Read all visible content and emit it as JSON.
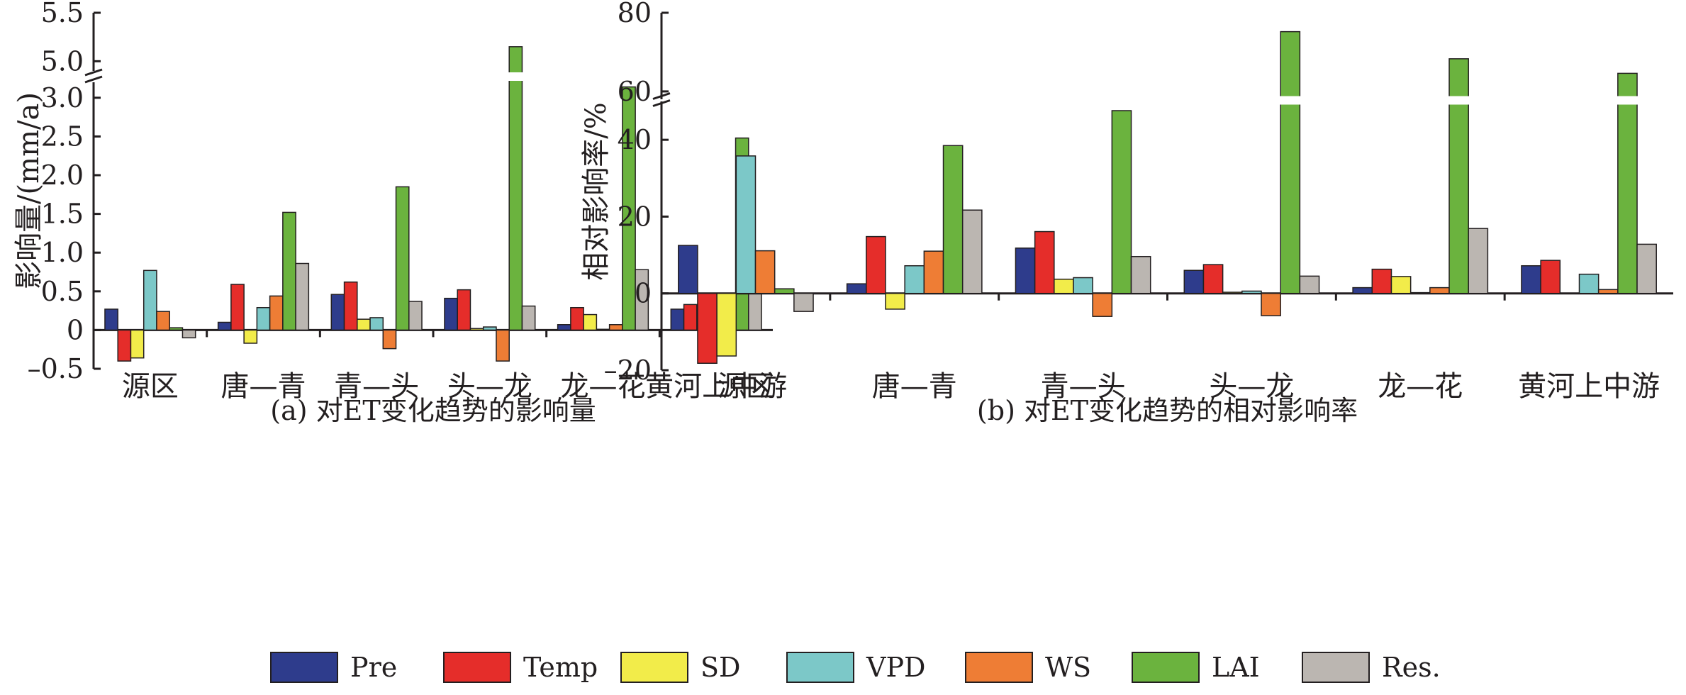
{
  "legend": [
    {
      "name": "Pre",
      "color": "#2e3c8c"
    },
    {
      "name": "Temp",
      "color": "#e52d2a"
    },
    {
      "name": "SD",
      "color": "#f2ec4a"
    },
    {
      "name": "VPD",
      "color": "#7cc8c8"
    },
    {
      "name": "WS",
      "color": "#ee7d35"
    },
    {
      "name": "LAI",
      "color": "#6bb33e"
    },
    {
      "name": "Res.",
      "color": "#bbb6b1"
    }
  ],
  "chart_data": [
    {
      "type": "bar",
      "caption": "(a) 对ET变化趋势的影响量",
      "ylabel": "影响量/(mm/a)",
      "xlabel": "",
      "categories": [
        "源区",
        "唐—青",
        "青—头",
        "头—龙",
        "龙—花",
        "黄河上中游"
      ],
      "ylim": [
        -0.5,
        5.5
      ],
      "axis_break": {
        "from": 3.2,
        "to": 4.9
      },
      "yticks": [
        -0.5,
        0,
        0.5,
        1.0,
        1.5,
        2.0,
        2.5,
        3.0,
        5.0,
        5.5
      ],
      "ytick_labels": [
        "–0.5",
        "0",
        "0.5",
        "1.0",
        "1.5",
        "2.0",
        "2.5",
        "3.0",
        "5.0",
        "5.5"
      ],
      "series": [
        {
          "name": "Pre",
          "values": [
            0.27,
            0.1,
            0.46,
            0.41,
            0.07,
            0.27
          ]
        },
        {
          "name": "Temp",
          "values": [
            -0.4,
            0.59,
            0.62,
            0.52,
            0.29,
            0.33
          ]
        },
        {
          "name": "SD",
          "values": [
            -0.36,
            -0.17,
            0.14,
            0.02,
            0.2,
            0.0
          ]
        },
        {
          "name": "VPD",
          "values": [
            0.77,
            0.29,
            0.16,
            0.04,
            0.01,
            0.19
          ]
        },
        {
          "name": "WS",
          "values": [
            0.24,
            0.44,
            -0.24,
            -0.4,
            0.07,
            0.04
          ]
        },
        {
          "name": "LAI",
          "values": [
            0.03,
            1.52,
            1.85,
            5.15,
            3.14,
            2.48
          ]
        },
        {
          "name": "Res.",
          "values": [
            -0.1,
            0.86,
            0.37,
            0.31,
            0.78,
            0.5
          ]
        }
      ]
    },
    {
      "type": "bar",
      "caption": "(b) 对ET变化趋势的相对影响率",
      "ylabel": "相对影响率/%",
      "xlabel": "",
      "categories": [
        "源区",
        "唐—青",
        "青—头",
        "头—龙",
        "龙—花",
        "黄河上中游"
      ],
      "ylim": [
        -20,
        80
      ],
      "axis_break": {
        "from": 50,
        "to": 58
      },
      "yticks": [
        -20,
        0,
        20,
        40,
        60,
        80
      ],
      "ytick_labels": [
        "–20",
        "0",
        "20",
        "40",
        "60",
        "80"
      ],
      "series": [
        {
          "name": "Pre",
          "values": [
            12.5,
            2.5,
            11.8,
            6.0,
            1.5,
            7.2
          ]
        },
        {
          "name": "Temp",
          "values": [
            -18.2,
            14.8,
            16.1,
            7.5,
            6.3,
            8.6
          ]
        },
        {
          "name": "SD",
          "values": [
            -16.3,
            -4.1,
            3.7,
            0.3,
            4.4,
            0.0
          ]
        },
        {
          "name": "VPD",
          "values": [
            35.8,
            7.2,
            4.1,
            0.6,
            0.2,
            5.0
          ]
        },
        {
          "name": "WS",
          "values": [
            11.1,
            11.0,
            -6.0,
            -5.8,
            1.5,
            1.0
          ]
        },
        {
          "name": "LAI",
          "values": [
            1.2,
            38.5,
            47.6,
            75.2,
            68.3,
            64.6
          ]
        },
        {
          "name": "Res.",
          "values": [
            -4.7,
            21.7,
            9.6,
            4.5,
            16.9,
            12.8
          ]
        }
      ]
    }
  ]
}
